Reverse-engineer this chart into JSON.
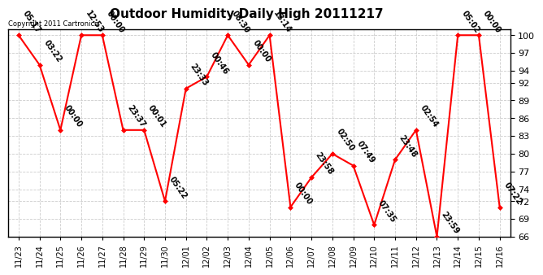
{
  "title": "Outdoor Humidity Daily High 20111217",
  "copyright": "Copyright 2011 Cartronics",
  "background_color": "#ffffff",
  "line_color": "#ff0000",
  "marker_color": "#ff0000",
  "grid_color": "#cccccc",
  "ylim": [
    66,
    101
  ],
  "yticks": [
    66,
    69,
    72,
    74,
    77,
    80,
    83,
    86,
    89,
    92,
    94,
    97,
    100
  ],
  "points": [
    {
      "date": "11/23",
      "value": 100,
      "label": "05:17"
    },
    {
      "date": "11/24",
      "value": 95,
      "label": "03:22"
    },
    {
      "date": "11/25",
      "value": 84,
      "label": "00:00"
    },
    {
      "date": "11/26",
      "value": 100,
      "label": "12:53"
    },
    {
      "date": "11/27",
      "value": 100,
      "label": "00:00"
    },
    {
      "date": "11/28",
      "value": 84,
      "label": "23:37"
    },
    {
      "date": "11/29",
      "value": 84,
      "label": "00:01"
    },
    {
      "date": "11/30",
      "value": 72,
      "label": "05:22"
    },
    {
      "date": "12/01",
      "value": 91,
      "label": "23:33"
    },
    {
      "date": "12/02",
      "value": 93,
      "label": "00:46"
    },
    {
      "date": "12/03",
      "value": 100,
      "label": "08:30"
    },
    {
      "date": "12/04",
      "value": 95,
      "label": "00:00"
    },
    {
      "date": "12/05",
      "value": 100,
      "label": "13:14"
    },
    {
      "date": "12/06",
      "value": 71,
      "label": "00:00"
    },
    {
      "date": "12/07",
      "value": 76,
      "label": "23:58"
    },
    {
      "date": "12/08",
      "value": 80,
      "label": "02:50"
    },
    {
      "date": "12/09",
      "value": 78,
      "label": "07:49"
    },
    {
      "date": "12/10",
      "value": 68,
      "label": "07:35"
    },
    {
      "date": "12/11",
      "value": 79,
      "label": "23:48"
    },
    {
      "date": "12/12",
      "value": 84,
      "label": "02:54"
    },
    {
      "date": "12/13",
      "value": 66,
      "label": "23:59"
    },
    {
      "date": "12/14",
      "value": 100,
      "label": "05:02"
    },
    {
      "date": "12/15",
      "value": 100,
      "label": "00:00"
    },
    {
      "date": "12/16",
      "value": 71,
      "label": "07:22"
    }
  ],
  "label_rotation": -55,
  "label_fontsize": 7,
  "title_fontsize": 11,
  "xlabel_fontsize": 7,
  "ylabel_fontsize": 8,
  "copyright_fontsize": 6,
  "marker_size": 3
}
